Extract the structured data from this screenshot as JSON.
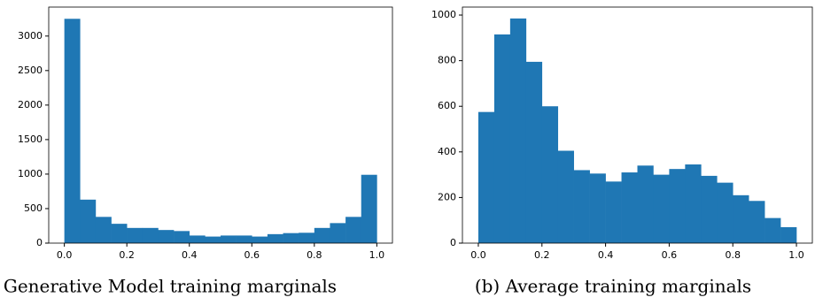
{
  "chart_data": [
    {
      "type": "histogram",
      "caption": "(a) Generative Model training marginals",
      "color": "#1f77b4",
      "bins": [
        0,
        0.05,
        0.1,
        0.15,
        0.2,
        0.25,
        0.3,
        0.35,
        0.4,
        0.45,
        0.5,
        0.55,
        0.6,
        0.65,
        0.7,
        0.75,
        0.8,
        0.85,
        0.9,
        0.95,
        1
      ],
      "values": [
        3250,
        630,
        380,
        280,
        220,
        220,
        190,
        175,
        110,
        95,
        110,
        110,
        95,
        130,
        145,
        150,
        220,
        290,
        380,
        990
      ],
      "xlim": [
        -0.05,
        1.05
      ],
      "ylim": [
        0,
        3420
      ],
      "xticks": [
        {
          "value": 0,
          "label": "0.0"
        },
        {
          "value": 0.2,
          "label": "0.2"
        },
        {
          "value": 0.4,
          "label": "0.4"
        },
        {
          "value": 0.6,
          "label": "0.6"
        },
        {
          "value": 0.8,
          "label": "0.8"
        },
        {
          "value": 1,
          "label": "1.0"
        }
      ],
      "yticks": [
        0,
        500,
        1000,
        1500,
        2000,
        2500,
        3000
      ]
    },
    {
      "type": "histogram",
      "caption": "(b) Average training marginals",
      "color": "#1f77b4",
      "bins": [
        0,
        0.05,
        0.1,
        0.15,
        0.2,
        0.25,
        0.3,
        0.35,
        0.4,
        0.45,
        0.5,
        0.55,
        0.6,
        0.65,
        0.7,
        0.75,
        0.8,
        0.85,
        0.9,
        0.95,
        1
      ],
      "values": [
        575,
        915,
        985,
        795,
        600,
        405,
        320,
        305,
        270,
        310,
        340,
        300,
        325,
        345,
        295,
        265,
        210,
        185,
        110,
        70
      ],
      "xlim": [
        -0.05,
        1.05
      ],
      "ylim": [
        0,
        1035
      ],
      "xticks": [
        {
          "value": 0,
          "label": "0.0"
        },
        {
          "value": 0.2,
          "label": "0.2"
        },
        {
          "value": 0.4,
          "label": "0.4"
        },
        {
          "value": 0.6,
          "label": "0.6"
        },
        {
          "value": 0.8,
          "label": "0.8"
        },
        {
          "value": 1,
          "label": "1.0"
        }
      ],
      "yticks": [
        0,
        200,
        400,
        600,
        800,
        1000
      ]
    }
  ]
}
